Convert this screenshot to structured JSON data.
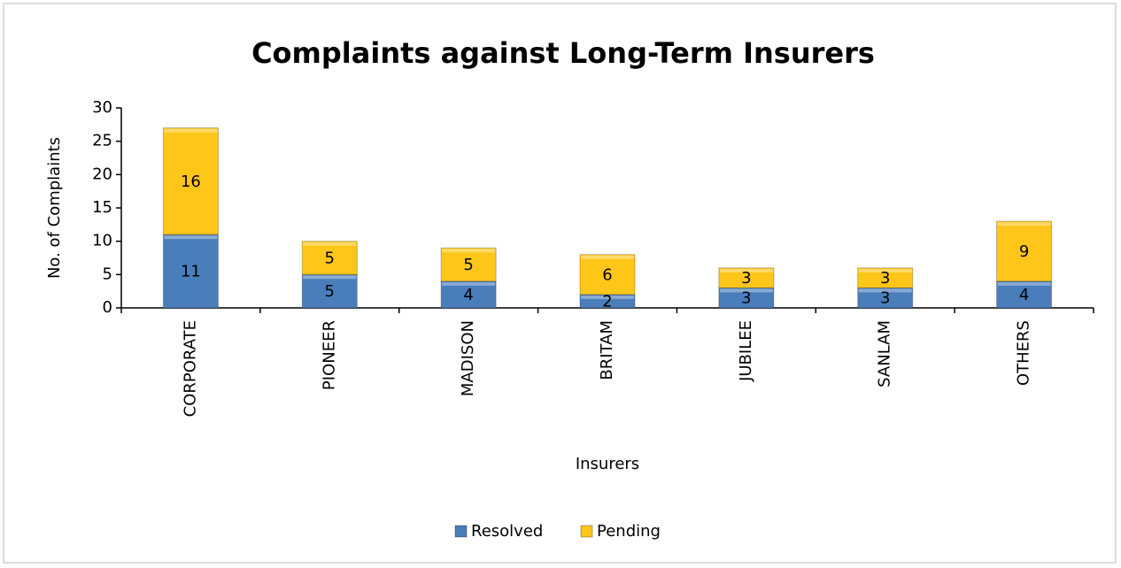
{
  "chart_data": {
    "type": "stacked_bar",
    "title": "Complaints against Long-Term Insurers",
    "x_label": "Insurers",
    "y_label": "No. of Complaints",
    "categories": [
      "CORPORATE",
      "PIONEER",
      "MADISON",
      "BRITAM",
      "JUBILEE",
      "SANLAM",
      "OTHERS"
    ],
    "series": [
      {
        "name": "Resolved",
        "color": "#4a7ebb",
        "values": [
          11,
          5,
          4,
          2,
          3,
          3,
          4
        ]
      },
      {
        "name": "Pending",
        "color": "#ffc61a",
        "values": [
          16,
          5,
          5,
          6,
          3,
          3,
          9
        ]
      }
    ],
    "ylim": [
      0,
      30
    ],
    "yticks": [
      0,
      5,
      10,
      15,
      20,
      25,
      30
    ],
    "legend": "bottom"
  }
}
